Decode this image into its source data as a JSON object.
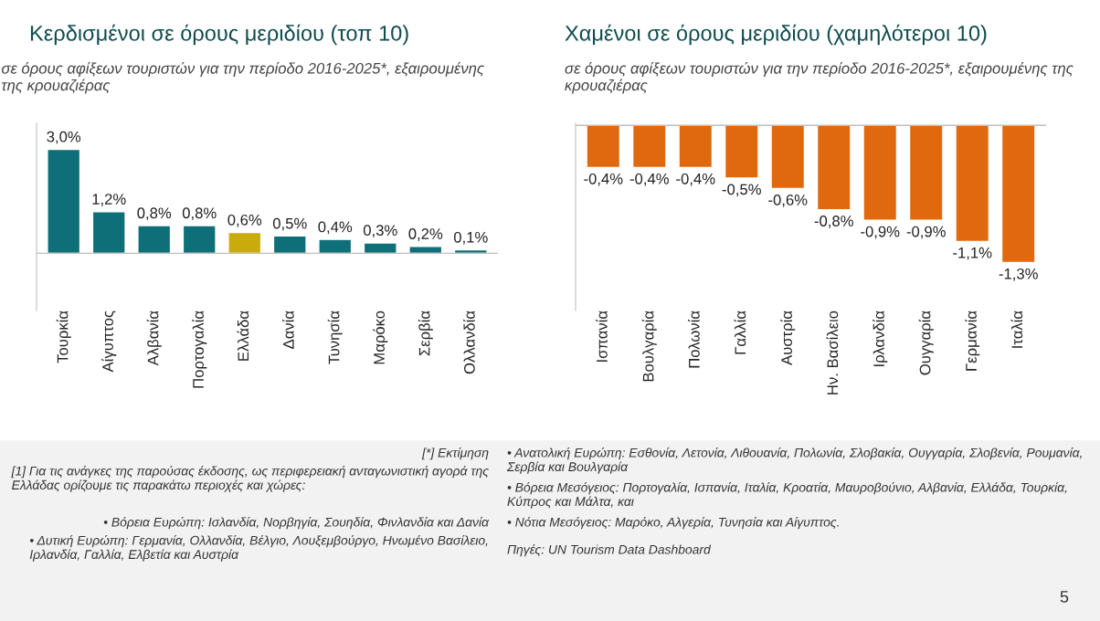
{
  "chart_data": [
    {
      "type": "bar",
      "title": "Κερδισμένοι σε όρους μεριδίου (τοπ 10)",
      "subtitle": "σε όρους αφίξεων τουριστών για την περίοδο 2016-2025*, εξαιρουμένης της κρουαζιέρας",
      "categories": [
        "Τουρκία",
        "Αίγυπτος",
        "Αλβανία",
        "Πορτογαλία",
        "Ελλάδα",
        "Δανία",
        "Τυνησία",
        "Μαρόκο",
        "Σερβία",
        "Ολλανδία"
      ],
      "values": [
        3.0,
        1.2,
        0.8,
        0.8,
        0.6,
        0.5,
        0.4,
        0.3,
        0.2,
        0.1
      ],
      "colors": [
        "#0e6f78",
        "#0e6f78",
        "#0e6f78",
        "#0e6f78",
        "#c9ac0c",
        "#0e6f78",
        "#0e6f78",
        "#0e6f78",
        "#0e6f78",
        "#0e6f78"
      ],
      "value_labels": [
        "3,0%",
        "1,2%",
        "0,8%",
        "0,8%",
        "0,6%",
        "0,5%",
        "0,4%",
        "0,3%",
        "0,2%",
        "0,1%"
      ],
      "annotations": [
        "[*] Εκτίμηση",
        "[1] Για τις ανάγκες της παρούσας έκδοσης, ως περιφερειακή ανταγωνιστική αγορά της Ελλάδας ορίζουμε τις παρακάτω περιοχές και χώρες:",
        "• Βόρεια Ευρώπη: Ισλανδία, Νορβηγία, Σουηδία, Φινλανδία και Δανία",
        "• Δυτική Ευρώπη: Γερμανία, Ολλανδία, Βέλγιο, Λουξεμβούργο, Ηνωμένο Βασίλειο, Ιρλανδία, Γαλλία, Ελβετία και Αυστρία"
      ],
      "grid": false,
      "legend": false
    },
    {
      "type": "bar",
      "title": "Χαμένοι σε όρους μεριδίου (χαμηλότεροι 10)",
      "subtitle": "σε όρους αφίξεων τουριστών για την περίοδο 2016-2025*, εξαιρουμένης της κρουαζιέρας",
      "categories": [
        "Ισπανία",
        "Βουλγαρία",
        "Πολωνία",
        "Γαλλία",
        "Αυστρία",
        "Ην. Βασίλειο",
        "Ιρλανδία",
        "Ουγγαρία",
        "Γερμανία",
        "Ιταλία"
      ],
      "values": [
        -0.4,
        -0.4,
        -0.4,
        -0.5,
        -0.6,
        -0.8,
        -0.9,
        -0.9,
        -1.1,
        -1.3
      ],
      "colors": [
        "#e0690f",
        "#e0690f",
        "#e0690f",
        "#e0690f",
        "#e0690f",
        "#e0690f",
        "#e0690f",
        "#e0690f",
        "#e0690f",
        "#e0690f"
      ],
      "value_labels": [
        "-0,4%",
        "-0,4%",
        "-0,4%",
        "-0,5%",
        "-0,6%",
        "-0,8%",
        "-0,9%",
        "-0,9%",
        "-1,1%",
        "-1,3%"
      ],
      "annotations": [
        "• Ανατολική Ευρώπη: Εσθονία, Λετονία, Λιθουανία, Πολωνία, Σλοβακία, Ουγγαρία, Σλοβενία, Ρουμανία, Σερβία και Βουλγαρία",
        "• Βόρεια Μεσόγειος: Πορτογαλία, Ισπανία, Ιταλία, Κροατία, Μαυροβούνιο, Αλβανία, Ελλάδα, Τουρκία, Κύπρος και Μάλτα, και",
        "• Νότια Μεσόγειος: Μαρόκο, Αλγερία, Τυνησία και Αίγυπτος.",
        "Πηγές: UN Tourism Data Dashboard",
        "5"
      ],
      "grid": false,
      "legend": false
    }
  ]
}
